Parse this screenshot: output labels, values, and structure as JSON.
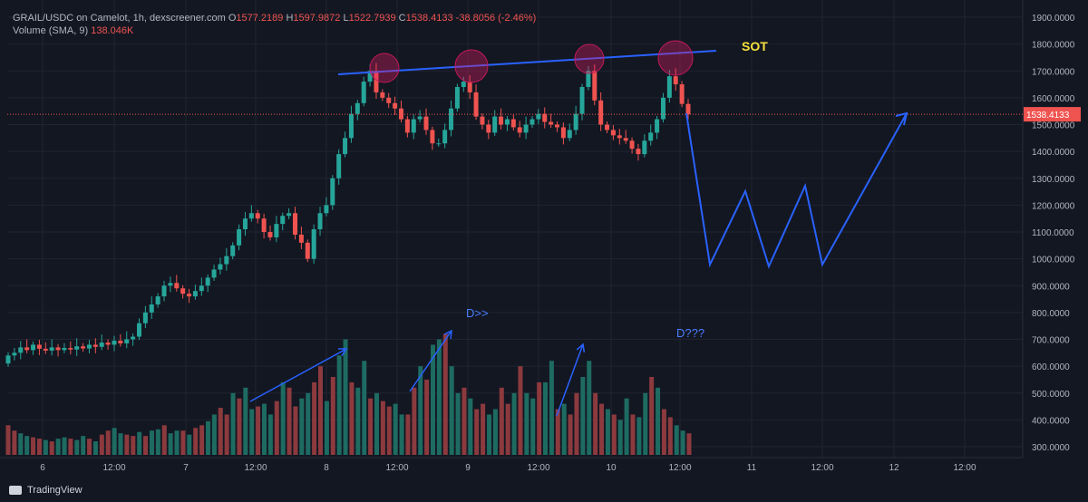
{
  "header": {
    "symbol": "GRAIL/USDC on Camelot, 1h, dexscreener.com",
    "o_label": "O",
    "o_value": "1577.2189",
    "h_label": "H",
    "h_value": "1597.9872",
    "l_label": "L",
    "l_value": "1522.7939",
    "c_label": "C",
    "c_value": "1538.4133",
    "change": "-38.8056 (-2.46%)",
    "volume_label": "Volume (SMA, 9)",
    "volume_value": "138.046K"
  },
  "footer": {
    "brand": "TradingView"
  },
  "colors": {
    "up": "#26a69a",
    "down": "#ef5350",
    "annotation": "#2962ff",
    "sot_text": "#f7e23b",
    "background": "#131722"
  },
  "chart_data": {
    "type": "candlestick",
    "price_axis": {
      "ticks": [
        "1900.0000",
        "1800.0000",
        "1700.0000",
        "1600.0000",
        "1500.0000",
        "1400.0000",
        "1300.0000",
        "1200.0000",
        "1100.0000",
        "1000.0000",
        "900.0000",
        "800.0000",
        "700.0000",
        "600.0000",
        "500.0000",
        "400.0000",
        "300.0000"
      ],
      "range": [
        270,
        1930
      ],
      "last_price": "1538.4133"
    },
    "time_axis": {
      "labels": [
        "6",
        "12:00",
        "7",
        "12:00",
        "8",
        "12:00",
        "9",
        "12:00",
        "10",
        "12:00",
        "11",
        "12:00",
        "12",
        "12:00"
      ]
    },
    "candles_close": [
      640,
      650,
      670,
      660,
      680,
      665,
      658,
      670,
      660,
      668,
      662,
      674,
      666,
      680,
      672,
      688,
      680,
      695,
      685,
      700,
      710,
      760,
      800,
      830,
      860,
      900,
      910,
      890,
      870,
      860,
      880,
      900,
      930,
      960,
      980,
      1010,
      1050,
      1110,
      1150,
      1170,
      1150,
      1100,
      1080,
      1130,
      1160,
      1170,
      1090,
      1060,
      1000,
      1110,
      1170,
      1200,
      1300,
      1390,
      1450,
      1540,
      1580,
      1660,
      1700,
      1620,
      1600,
      1580,
      1560,
      1520,
      1470,
      1520,
      1530,
      1480,
      1430,
      1430,
      1480,
      1560,
      1640,
      1660,
      1620,
      1530,
      1500,
      1470,
      1530,
      1500,
      1520,
      1490,
      1470,
      1500,
      1520,
      1540,
      1510,
      1500,
      1490,
      1450,
      1480,
      1540,
      1640,
      1700,
      1590,
      1500,
      1480,
      1460,
      1450,
      1440,
      1410,
      1390,
      1440,
      1470,
      1520,
      1600,
      1680,
      1650,
      1577,
      1538
    ],
    "volume_bars": [
      380,
      360,
      350,
      340,
      335,
      330,
      325,
      320,
      330,
      335,
      330,
      325,
      340,
      330,
      320,
      345,
      360,
      370,
      350,
      345,
      340,
      355,
      340,
      360,
      365,
      380,
      350,
      360,
      360,
      345,
      370,
      380,
      395,
      420,
      445,
      420,
      500,
      480,
      520,
      440,
      450,
      460,
      420,
      470,
      540,
      520,
      450,
      480,
      500,
      540,
      600,
      470,
      560,
      640,
      700,
      540,
      520,
      620,
      480,
      500,
      470,
      450,
      460,
      420,
      420,
      520,
      600,
      550,
      680,
      700,
      720,
      600,
      500,
      520,
      480,
      440,
      460,
      420,
      440,
      520,
      460,
      500,
      600,
      500,
      480,
      540,
      540,
      620,
      440,
      460,
      420,
      500,
      560,
      620,
      500,
      460,
      440,
      420,
      400,
      480,
      420,
      410,
      500,
      560,
      520,
      440,
      410,
      380,
      360,
      350
    ],
    "volume_colors": "mixed",
    "annotations": {
      "sot_label": "SOT",
      "d_label": "D>>",
      "d2_label": "D???",
      "resistance_line": [
        [
          1,
          1690
        ],
        [
          8,
          1775
        ]
      ],
      "projection_path": [
        "1540 -> 980 -> 1255 -> 970 -> 1270 -> 980 -> 1545"
      ]
    }
  }
}
